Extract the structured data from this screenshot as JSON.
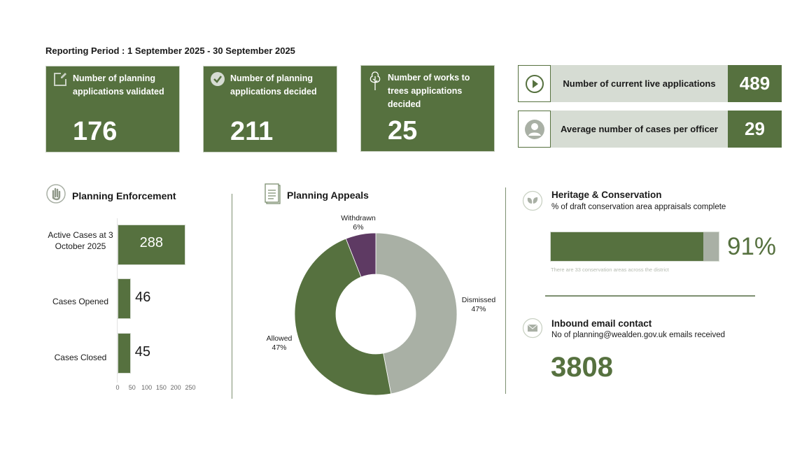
{
  "reporting_period": "Reporting Period : 1 September 2025 - 30 September 2025",
  "cards": [
    {
      "label": "Number of planning applications validated",
      "value": "176",
      "icon": "edit-icon"
    },
    {
      "label": "Number of planning applications decided",
      "value": "211",
      "icon": "check-circle-icon"
    },
    {
      "label": "Number of works to trees applications decided",
      "value": "25",
      "icon": "tree-icon"
    }
  ],
  "kpis": [
    {
      "label": "Number of current live applications",
      "value": "489",
      "icon": "play-icon"
    },
    {
      "label": "Average number of cases per officer",
      "value": "29",
      "icon": "person-icon"
    }
  ],
  "enforcement": {
    "title": "Planning Enforcement"
  },
  "appeals": {
    "title": "Planning Appeals"
  },
  "heritage": {
    "title": "Heritage & Conservation",
    "subtitle": "% of draft conservation area appraisals complete",
    "percent": 91,
    "percent_label": "91%",
    "note": "There are 33 conservation areas across the district"
  },
  "email": {
    "title": "Inbound email contact",
    "subtitle": "No of planning@wealden.gov.uk emails received",
    "value": "3808"
  },
  "colors": {
    "green": "#56713f",
    "grey": "#a9b0a5",
    "purple": "#5e3a63",
    "light": "#d6dcd3"
  },
  "chart_data": [
    {
      "type": "bar",
      "orientation": "horizontal",
      "title": "Planning Enforcement",
      "categories": [
        "Active Cases at 3 October 2025",
        "Cases Opened",
        "Cases Closed"
      ],
      "values": [
        288,
        46,
        45
      ],
      "value_labels": [
        "288",
        "46",
        "45"
      ],
      "xticks": [
        "0",
        "50",
        "100",
        "150",
        "200",
        "250"
      ],
      "xlim": [
        0,
        250
      ]
    },
    {
      "type": "pie",
      "donut": true,
      "title": "Planning Appeals",
      "slices": [
        {
          "label": "Dismissed",
          "value": 47,
          "text": "47%",
          "color": "#a9b0a5"
        },
        {
          "label": "Allowed",
          "value": 47,
          "text": "47%",
          "color": "#56713f"
        },
        {
          "label": "Withdrawn",
          "value": 6,
          "text": "6%",
          "color": "#5e3a63"
        }
      ]
    }
  ]
}
